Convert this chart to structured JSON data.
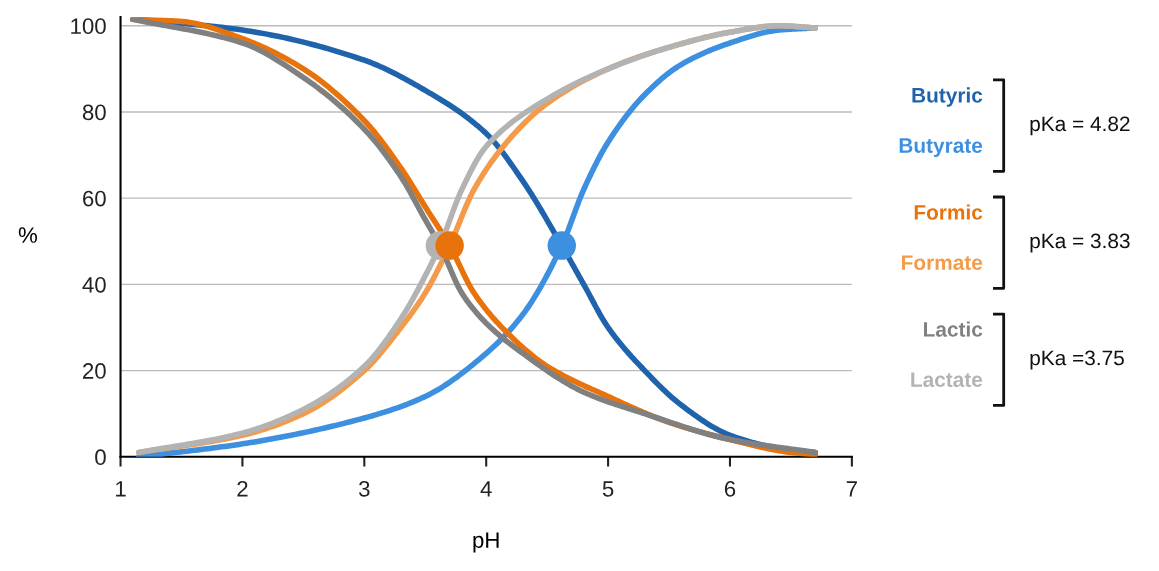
{
  "chart_data": {
    "type": "line",
    "xlabel": "pH",
    "ylabel": "%",
    "xlim": [
      1,
      7
    ],
    "ylim": [
      0,
      102
    ],
    "xticks": [
      1,
      2,
      3,
      4,
      5,
      6,
      7
    ],
    "yticks": [
      0,
      20,
      40,
      60,
      80,
      100
    ],
    "grid": "y",
    "line_style": "solid",
    "series": [
      {
        "name": "Butyric",
        "color": "#1f63ad",
        "x": [
          1.15,
          2,
          3,
          3.5,
          4,
          4.3,
          4.62,
          4.8,
          5,
          5.3,
          5.6,
          6,
          6.4,
          6.7
        ],
        "values": [
          101.5,
          99,
          92,
          85,
          75,
          64,
          49,
          40,
          30,
          20,
          12,
          5,
          2,
          1
        ]
      },
      {
        "name": "Butyrate",
        "color": "#3d8fe0",
        "x": [
          1.15,
          2,
          3,
          3.5,
          4,
          4.3,
          4.62,
          4.8,
          5,
          5.3,
          5.6,
          6,
          6.4,
          6.7
        ],
        "values": [
          0,
          3,
          9,
          14,
          24,
          33,
          49,
          62,
          73,
          84,
          91,
          96,
          99,
          99.5
        ]
      },
      {
        "name": "Formic",
        "color": "#e8730c",
        "x": [
          1.1,
          1.5,
          2,
          2.5,
          3,
          3.3,
          3.5,
          3.7,
          3.9,
          4.2,
          4.5,
          5,
          5.5,
          6,
          6.5,
          6.7
        ],
        "values": [
          101.5,
          101,
          97,
          90,
          78,
          67,
          58,
          49,
          38,
          28,
          21,
          14,
          8,
          4,
          1,
          0.5
        ]
      },
      {
        "name": "Formate",
        "color": "#f39b4a",
        "x": [
          1.15,
          2,
          2.5,
          3,
          3.3,
          3.5,
          3.7,
          3.9,
          4.2,
          4.5,
          5,
          5.5,
          6,
          6.4,
          6.7
        ],
        "values": [
          1,
          5,
          10,
          20,
          30,
          38,
          49,
          62,
          74,
          82,
          90,
          95,
          98.5,
          100,
          99.5
        ]
      },
      {
        "name": "Lactic",
        "color": "#808080",
        "x": [
          1.1,
          2,
          2.5,
          3,
          3.3,
          3.5,
          3.62,
          3.8,
          4,
          4.3,
          4.8,
          5.3,
          6,
          6.7
        ],
        "values": [
          101.5,
          96,
          88,
          76,
          65,
          55,
          49,
          38,
          31,
          24,
          15,
          10,
          4,
          1
        ]
      },
      {
        "name": "Lactate",
        "color": "#b3b3b3",
        "x": [
          1.15,
          2,
          2.5,
          3,
          3.3,
          3.5,
          3.62,
          3.8,
          4,
          4.5,
          5,
          5.5,
          6,
          6.4,
          6.7
        ],
        "values": [
          1,
          5.5,
          11,
          21,
          32,
          42,
          49,
          62,
          72,
          83,
          90,
          95,
          98.5,
          100,
          99.5
        ]
      },
      {
        "type": "scatter",
        "marker": "circle",
        "color": "#b3b3b3",
        "x": [
          3.62
        ],
        "values": [
          49
        ]
      },
      {
        "type": "scatter",
        "marker": "circle",
        "color": "#e8730c",
        "x": [
          3.7
        ],
        "values": [
          49
        ]
      },
      {
        "type": "scatter",
        "marker": "circle",
        "color": "#3d8fe0",
        "x": [
          4.62
        ],
        "values": [
          49
        ]
      }
    ],
    "annotations": [
      "pKa = 4.82",
      "pKa = 3.83",
      "pKa =3.75"
    ]
  }
}
